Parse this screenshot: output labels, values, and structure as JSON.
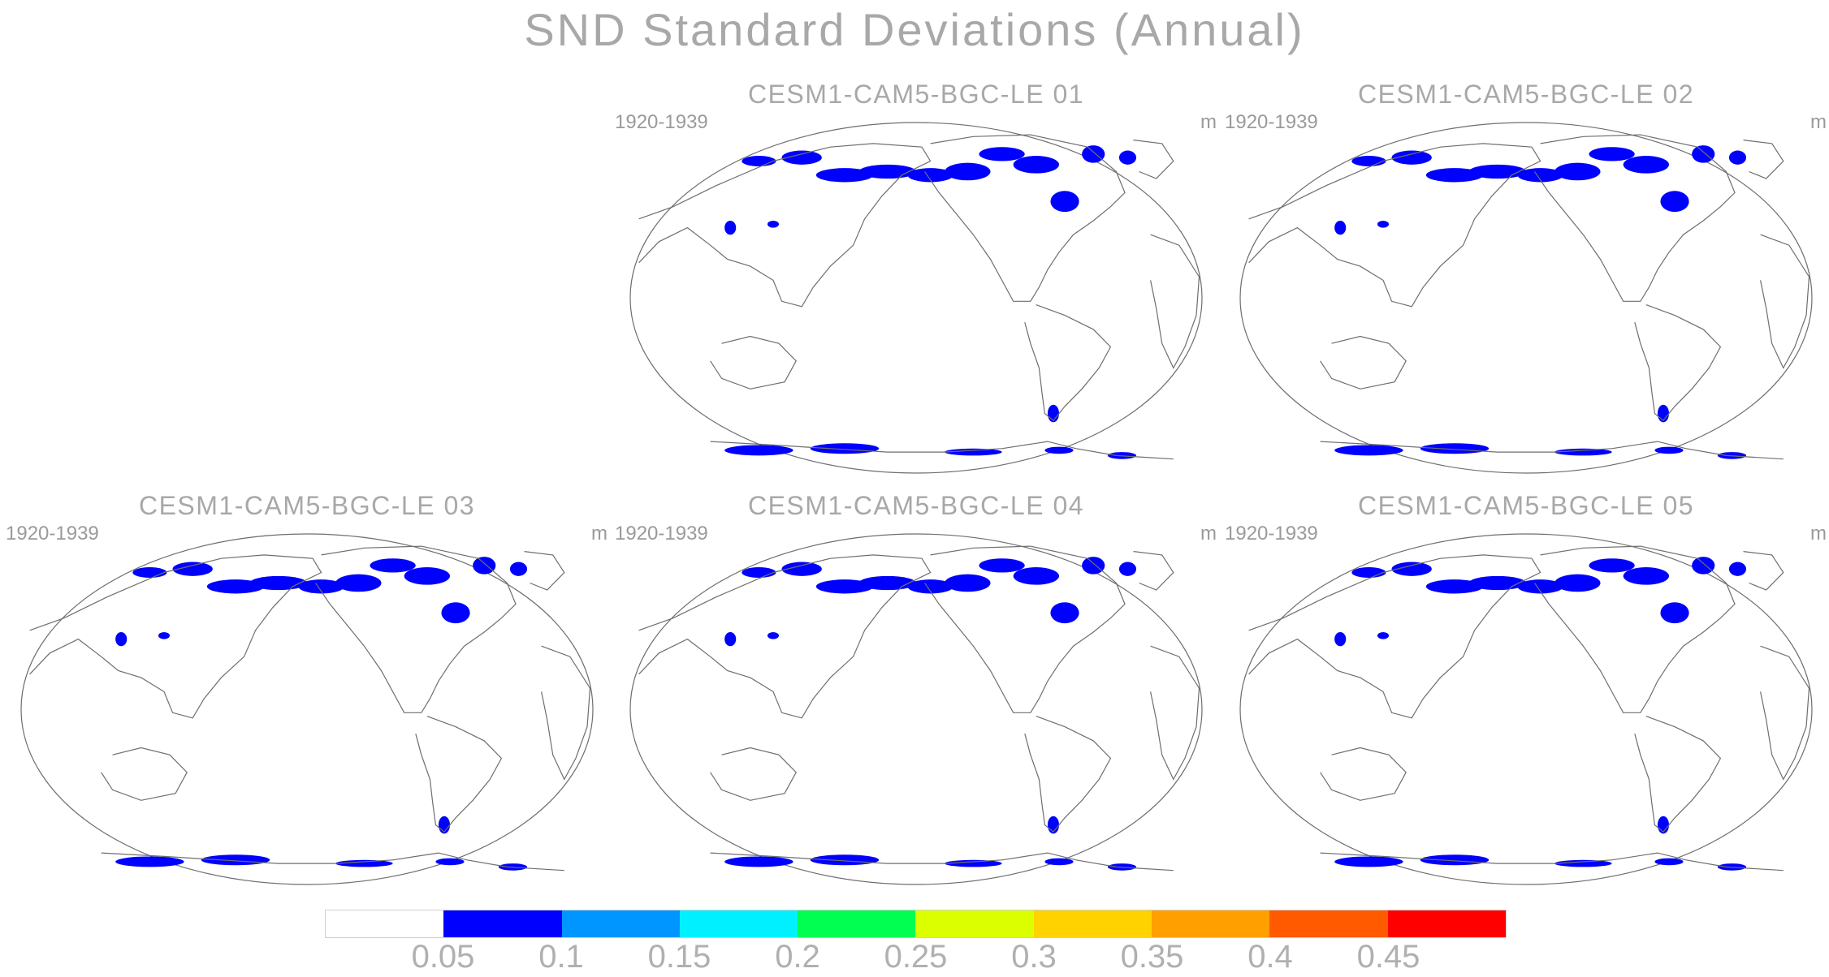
{
  "figure": {
    "title": "SND Standard Deviations (Annual)"
  },
  "panels": [
    {
      "title": "CESM1-CAM5-BGC-LE 01",
      "period": "1920-1939",
      "units": "m"
    },
    {
      "title": "CESM1-CAM5-BGC-LE 02",
      "period": "1920-1939",
      "units": "m"
    },
    {
      "title": "CESM1-CAM5-BGC-LE 03",
      "period": "1920-1939",
      "units": "m"
    },
    {
      "title": "CESM1-CAM5-BGC-LE 04",
      "period": "1920-1939",
      "units": "m"
    },
    {
      "title": "CESM1-CAM5-BGC-LE 05",
      "period": "1920-1939",
      "units": "m"
    }
  ],
  "colorbar": {
    "colors": [
      "#ffffff",
      "#0000ff",
      "#0096ff",
      "#00f0ff",
      "#00ff50",
      "#dcff00",
      "#ffd200",
      "#ffa000",
      "#ff5a00",
      "#ff0000"
    ],
    "labels": [
      "0.05",
      "0.1",
      "0.15",
      "0.2",
      "0.25",
      "0.3",
      "0.35",
      "0.4",
      "0.45"
    ]
  },
  "map": {
    "projection": "Robinson-like, Pacific-centered",
    "land_outline_color": "#6e6e6e",
    "field_color_primary": "#0000ff"
  }
}
